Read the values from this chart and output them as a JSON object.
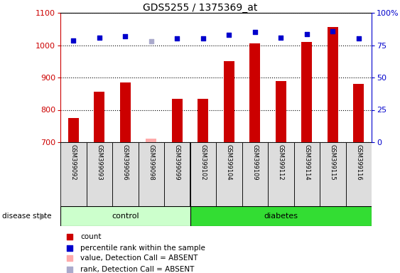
{
  "title": "GDS5255 / 1375369_at",
  "samples": [
    "GSM399092",
    "GSM399093",
    "GSM399096",
    "GSM399098",
    "GSM399099",
    "GSM399102",
    "GSM399104",
    "GSM399109",
    "GSM399112",
    "GSM399114",
    "GSM399115",
    "GSM399116"
  ],
  "counts": [
    775,
    855,
    885,
    712,
    833,
    833,
    950,
    1005,
    890,
    1010,
    1057,
    880
  ],
  "percentiles": [
    78.5,
    80.5,
    82.0,
    78.0,
    80.0,
    80.0,
    83.0,
    85.0,
    80.5,
    83.5,
    85.5,
    80.0
  ],
  "absent_flags": [
    false,
    false,
    false,
    true,
    false,
    false,
    false,
    false,
    false,
    false,
    false,
    false
  ],
  "control_count": 5,
  "ylim_left": [
    700,
    1100
  ],
  "ylim_right": [
    0,
    100
  ],
  "yticks_left": [
    700,
    800,
    900,
    1000,
    1100
  ],
  "yticks_right": [
    0,
    25,
    50,
    75,
    100
  ],
  "bar_color_present": "#cc0000",
  "bar_color_absent": "#ffaaaa",
  "dot_color_present": "#0000cc",
  "dot_color_absent": "#aaaacc",
  "control_bg": "#ccffcc",
  "diabetes_bg": "#33dd33",
  "sample_bg": "#dddddd",
  "bar_width": 0.4,
  "disease_state_label": "disease state",
  "control_label": "control",
  "diabetes_label": "diabetes",
  "legend_items": [
    {
      "color": "#cc0000",
      "label": "count"
    },
    {
      "color": "#0000cc",
      "label": "percentile rank within the sample"
    },
    {
      "color": "#ffaaaa",
      "label": "value, Detection Call = ABSENT"
    },
    {
      "color": "#aaaacc",
      "label": "rank, Detection Call = ABSENT"
    }
  ]
}
